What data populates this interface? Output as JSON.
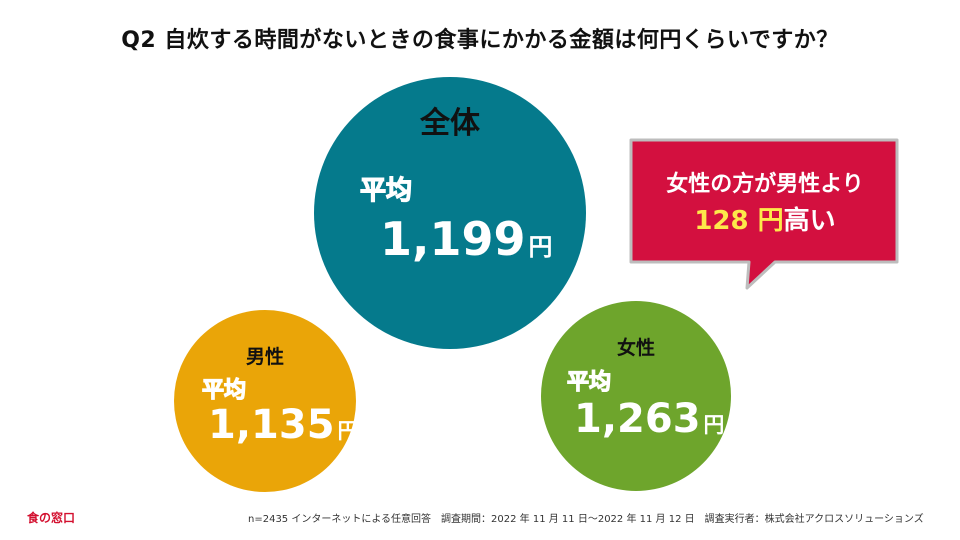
{
  "title": "Q2 自炊する時間がないときの食事にかかる金額は何円くらいですか？",
  "chart_data": {
    "type": "bubble",
    "unit": "円",
    "avg_label": "平均",
    "groups": [
      {
        "name": "全体",
        "value": 1199,
        "value_text": "1,199",
        "color": "#057a8c"
      },
      {
        "name": "男性",
        "value": 1135,
        "value_text": "1,135",
        "color": "#eaa508"
      },
      {
        "name": "女性",
        "value": 1263,
        "value_text": "1,263",
        "color": "#6ea52c"
      }
    ],
    "annotation": {
      "line1": "女性の方が男性より",
      "highlight": "128 円",
      "suffix": "高い",
      "color": "#d3103f"
    }
  },
  "footer": {
    "logo": "食の窓口",
    "note": "n=2435 インターネットによる任意回答　調査期間：2022 年 11 月 11 日〜2022 年 11 月 12 日　調査実行者：株式会社アクロスソリューションズ"
  }
}
